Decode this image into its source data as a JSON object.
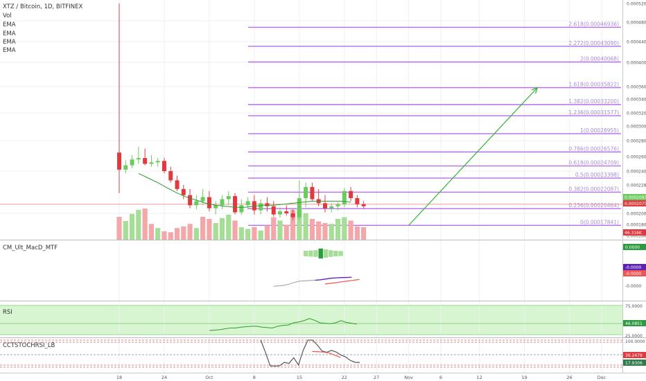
{
  "header": {
    "symbol": "XTZ / Bitcoin, 1D, BITFINEX",
    "indicators": [
      "Vol",
      "EMA",
      "EMA",
      "EMA",
      "EMA"
    ]
  },
  "colors": {
    "up": "#6bcb5e",
    "down": "#e03a3e",
    "vol_up": "#a6dd97",
    "vol_down": "#f4a7a9",
    "fib": "#b36fe6",
    "fib_text": "#a58ad8",
    "arrow": "#2fb32f",
    "ema": "#2b9b2b",
    "rsi_bg": "#d8f5d2",
    "rsi_line": "#2b9b2b",
    "macd_line": "#5b21b6",
    "macd_signal": "#f05555",
    "grid": "#eef0f2"
  },
  "chart_data": {
    "type": "candlestick",
    "title": "XTZ / Bitcoin, 1D, BITFINEX",
    "x_ticks": [
      "18",
      "24",
      "Oct",
      "8",
      "15",
      "22",
      "27",
      "Nov",
      "6",
      "12",
      "19",
      "26",
      "Dec"
    ],
    "price_axis": {
      "ticks": [
        "0.00052000",
        "0.00048000",
        "0.00044000",
        "0.00040000",
        "0.00036000",
        "0.00034000",
        "0.00032000",
        "0.00030000",
        "0.00028000",
        "0.00026000",
        "0.00024000",
        "0.00022800",
        "0.00020000",
        "0.00018000",
        "0.00016000"
      ],
      "last_labels": [
        {
          "text": "0.00020938",
          "role": "close-green"
        },
        {
          "text": "0.00020754",
          "role": "close-red"
        },
        {
          "text": "46.316K",
          "role": "volume"
        }
      ]
    },
    "candles": [
      {
        "d": "Sep 17",
        "o": 0.000265,
        "h": 0.00052,
        "l": 0.00022,
        "c": 0.000242
      },
      {
        "d": "Sep 18",
        "o": 0.000242,
        "h": 0.000255,
        "l": 0.000238,
        "c": 0.000248
      },
      {
        "d": "Sep 19",
        "o": 0.000248,
        "h": 0.000262,
        "l": 0.000244,
        "c": 0.000256
      },
      {
        "d": "Sep 20",
        "o": 0.000256,
        "h": 0.000272,
        "l": 0.00025,
        "c": 0.000258
      },
      {
        "d": "Sep 21",
        "o": 0.000258,
        "h": 0.00027,
        "l": 0.000248,
        "c": 0.00025
      },
      {
        "d": "Sep 22",
        "o": 0.00025,
        "h": 0.000262,
        "l": 0.000246,
        "c": 0.000252
      },
      {
        "d": "Sep 23",
        "o": 0.000252,
        "h": 0.000258,
        "l": 0.000246,
        "c": 0.000254
      },
      {
        "d": "Sep 24",
        "o": 0.000254,
        "h": 0.000258,
        "l": 0.000238,
        "c": 0.00024
      },
      {
        "d": "Sep 25",
        "o": 0.00024,
        "h": 0.000246,
        "l": 0.00023,
        "c": 0.000232
      },
      {
        "d": "Sep 26",
        "o": 0.000232,
        "h": 0.000236,
        "l": 0.000222,
        "c": 0.000224
      },
      {
        "d": "Sep 27",
        "o": 0.000224,
        "h": 0.000228,
        "l": 0.000214,
        "c": 0.000218
      },
      {
        "d": "Sep 28",
        "o": 0.000218,
        "h": 0.000224,
        "l": 0.000205,
        "c": 0.000208
      },
      {
        "d": "Sep 29",
        "o": 0.000208,
        "h": 0.000218,
        "l": 0.000204,
        "c": 0.000212
      },
      {
        "d": "Sep 30",
        "o": 0.000212,
        "h": 0.000224,
        "l": 0.000208,
        "c": 0.000216
      },
      {
        "d": "Oct 1",
        "o": 0.000216,
        "h": 0.000222,
        "l": 0.000202,
        "c": 0.000205
      },
      {
        "d": "Oct 2",
        "o": 0.000205,
        "h": 0.000212,
        "l": 0.000198,
        "c": 0.000208
      },
      {
        "d": "Oct 3",
        "o": 0.000208,
        "h": 0.000218,
        "l": 0.000204,
        "c": 0.000214
      },
      {
        "d": "Oct 4",
        "o": 0.000214,
        "h": 0.000222,
        "l": 0.000208,
        "c": 0.000217
      },
      {
        "d": "Oct 5",
        "o": 0.000217,
        "h": 0.00022,
        "l": 0.000198,
        "c": 0.000201
      },
      {
        "d": "Oct 6",
        "o": 0.000201,
        "h": 0.000214,
        "l": 0.000197,
        "c": 0.000208
      },
      {
        "d": "Oct 7",
        "o": 0.000208,
        "h": 0.000216,
        "l": 0.000204,
        "c": 0.000212
      },
      {
        "d": "Oct 8",
        "o": 0.000212,
        "h": 0.000218,
        "l": 0.000198,
        "c": 0.000203
      },
      {
        "d": "Oct 9",
        "o": 0.000203,
        "h": 0.000214,
        "l": 0.000198,
        "c": 0.00021
      },
      {
        "d": "Oct 10",
        "o": 0.00021,
        "h": 0.000216,
        "l": 0.000202,
        "c": 0.000207
      },
      {
        "d": "Oct 11",
        "o": 0.000207,
        "h": 0.000212,
        "l": 0.000194,
        "c": 0.000198
      },
      {
        "d": "Oct 12",
        "o": 0.000198,
        "h": 0.000206,
        "l": 0.000192,
        "c": 0.000202
      },
      {
        "d": "Oct 13",
        "o": 0.000202,
        "h": 0.000208,
        "l": 0.000196,
        "c": 0.0002
      },
      {
        "d": "Oct 14",
        "o": 0.0002,
        "h": 0.000204,
        "l": 0.000188,
        "c": 0.000193
      },
      {
        "d": "Oct 15",
        "o": 0.000193,
        "h": 0.000232,
        "l": 0.000188,
        "c": 0.000215
      },
      {
        "d": "Oct 16",
        "o": 0.000215,
        "h": 0.00023,
        "l": 0.000206,
        "c": 0.000226
      },
      {
        "d": "Oct 17",
        "o": 0.000226,
        "h": 0.00023,
        "l": 0.000212,
        "c": 0.000214
      },
      {
        "d": "Oct 18",
        "o": 0.000214,
        "h": 0.000224,
        "l": 0.000207,
        "c": 0.00021
      },
      {
        "d": "Oct 19",
        "o": 0.00021,
        "h": 0.000218,
        "l": 0.000201,
        "c": 0.000205
      },
      {
        "d": "Oct 20",
        "o": 0.000205,
        "h": 0.00021,
        "l": 0.000201,
        "c": 0.000207
      },
      {
        "d": "Oct 21",
        "o": 0.000207,
        "h": 0.000211,
        "l": 0.000203,
        "c": 0.000209
      },
      {
        "d": "Oct 22",
        "o": 0.000209,
        "h": 0.000225,
        "l": 0.000206,
        "c": 0.000222
      },
      {
        "d": "Oct 23",
        "o": 0.000222,
        "h": 0.000226,
        "l": 0.000212,
        "c": 0.000215
      },
      {
        "d": "Oct 24",
        "o": 0.000215,
        "h": 0.000218,
        "l": 0.000206,
        "c": 0.000209
      },
      {
        "d": "Oct 25",
        "o": 0.000209,
        "h": 0.000212,
        "l": 0.000205,
        "c": 0.000207
      }
    ],
    "volume_up": [
      false,
      true,
      true,
      true,
      false,
      false,
      true,
      false,
      false,
      false,
      false,
      false,
      true,
      false,
      false,
      true,
      true,
      true,
      false,
      true,
      true,
      false,
      true,
      false,
      false,
      true,
      false,
      false,
      true,
      true,
      false,
      false,
      false,
      true,
      true,
      true,
      false,
      false,
      false
    ],
    "volume_values": [
      0.55,
      0.45,
      0.62,
      0.72,
      0.75,
      0.38,
      0.28,
      0.2,
      0.18,
      0.28,
      0.32,
      0.38,
      0.28,
      0.55,
      0.5,
      0.4,
      0.52,
      0.6,
      0.46,
      0.3,
      0.26,
      0.3,
      0.22,
      0.34,
      0.54,
      0.46,
      0.36,
      0.72,
      0.76,
      0.64,
      0.5,
      0.44,
      0.4,
      0.38,
      0.5,
      0.54,
      0.46,
      0.32,
      0.3
    ],
    "ema_values": [
      0.000238,
      0.000234,
      0.00023,
      0.000225,
      0.00022,
      0.000216,
      0.000213,
      0.00021,
      0.000208,
      0.000207,
      0.000206,
      0.000206,
      0.000207,
      0.000208,
      0.000208,
      0.000209,
      0.00021,
      0.000211,
      0.000212,
      0.000212,
      0.000212,
      0.000212,
      0.000211
    ],
    "fib_levels": [
      {
        "ratio": 0,
        "price": 0.00017841,
        "label": "0(0.00017841)"
      },
      {
        "ratio": 0.236,
        "price": 0.00020464,
        "label": "0.236(0.00020464)"
      },
      {
        "ratio": 0.382,
        "price": 0.00022087,
        "label": "0.382(0.00022087)"
      },
      {
        "ratio": 0.5,
        "price": 0.00023398,
        "label": "0.5(0.00023398)"
      },
      {
        "ratio": 0.618,
        "price": 0.00024709,
        "label": "0.618(0.00024709)"
      },
      {
        "ratio": 0.786,
        "price": 0.00026576,
        "label": "0.786(0.00026576)"
      },
      {
        "ratio": 1,
        "price": 0.00028955,
        "label": "1(0.00028955)"
      },
      {
        "ratio": 1.236,
        "price": 0.00031577,
        "label": "1.236(0.00031577)"
      },
      {
        "ratio": 1.382,
        "price": 0.000332,
        "label": "1.382(0.00033200)"
      },
      {
        "ratio": 1.618,
        "price": 0.00035822,
        "label": "1.618(0.00035822)"
      },
      {
        "ratio": 2,
        "price": 0.00040068,
        "label": "2(0.00040068)"
      },
      {
        "ratio": 2.272,
        "price": 0.0004309,
        "label": "2.272(0.00043090)"
      },
      {
        "ratio": 2.618,
        "price": 0.00046936,
        "label": "2.618(0.00046936)"
      }
    ],
    "arrow": {
      "from": {
        "d": "Nov 1",
        "price": 0.00017841
      },
      "to": {
        "d": "Nov 21",
        "price": 0.00035822
      }
    },
    "macd": {
      "title": "CM_Ult_MacD_MTF",
      "axis_labels": [
        "0.0000",
        "-0.0000",
        "-0.0000",
        "-0.0000"
      ],
      "histogram": [
        0.5,
        0.55,
        0.6,
        0.9,
        0.75,
        0.6,
        0.5,
        0.45
      ],
      "line": [
        -0.95,
        -0.9,
        -0.85,
        -0.72,
        -0.55,
        -0.42,
        -0.38,
        -0.35,
        -0.32,
        -0.28,
        -0.2,
        -0.12,
        -0.08,
        -0.05,
        -0.04,
        -0.02
      ],
      "signal": [
        -0.55,
        -0.5,
        -0.46,
        -0.4,
        -0.35,
        -0.3,
        -0.25
      ]
    },
    "rsi": {
      "title": "RSI",
      "upper": 75.0,
      "lower": 25.0,
      "axis_labels": [
        "75.0000",
        "25.0000"
      ],
      "last_label": "46.0851",
      "values": [
        32,
        33,
        34,
        36,
        38,
        38,
        40,
        41,
        42,
        42,
        40,
        39,
        38,
        42,
        44,
        45,
        50,
        52,
        55,
        60,
        56,
        50,
        49,
        48,
        50,
        55,
        51,
        49,
        47
      ]
    },
    "stochrsi": {
      "title": "CCTSTOCHRSI_LB",
      "axis_labels": [
        "100.0000"
      ],
      "last_labels": [
        "36.2479",
        "17.9306"
      ],
      "k": [
        100,
        55,
        5,
        4,
        5,
        18,
        14,
        35,
        8,
        62,
        100,
        100,
        82,
        60,
        55,
        62,
        56,
        45,
        38,
        25,
        18,
        17
      ],
      "d": [
        58,
        57,
        56,
        52,
        44,
        36
      ]
    }
  }
}
